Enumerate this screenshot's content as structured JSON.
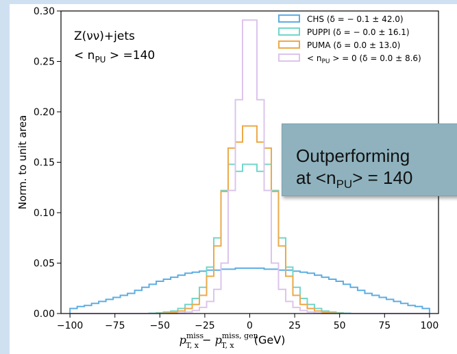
{
  "chart_data": {
    "type": "line",
    "drawstyle": "steps",
    "ylabel": "Norm. to unit area",
    "xlabel": {
      "base": "p",
      "sub": "T, x",
      "sup": "miss",
      "minus": " − ",
      "base2": "p",
      "sub2": "T, x",
      "sup2": "miss, gen",
      "unit": " (GeV)"
    },
    "xlim": [
      -105,
      105
    ],
    "ylim": [
      0,
      0.3
    ],
    "xticks": [
      -100,
      -75,
      -50,
      -25,
      0,
      25,
      50,
      75,
      100
    ],
    "yticks": [
      0.0,
      0.05,
      0.1,
      0.15,
      0.2,
      0.25,
      0.3
    ],
    "xtick_labels": [
      "−100",
      "−75",
      "−50",
      "−25",
      "0",
      "25",
      "50",
      "75",
      "100"
    ],
    "ytick_labels": [
      "0.00",
      "0.05",
      "0.10",
      "0.15",
      "0.20",
      "0.25",
      "0.30"
    ],
    "grid": false,
    "legend_placement": "top-right",
    "annotations": [
      {
        "text": "Z(νν)+jets"
      },
      {
        "text": "< n",
        "sub": "PU",
        "rest": " > =140"
      }
    ],
    "bin_edges": [
      -100,
      -96,
      -92,
      -88,
      -84,
      -80,
      -76,
      -72,
      -68,
      -64,
      -60,
      -56,
      -52,
      -48,
      -44,
      -40,
      -36,
      -32,
      -28,
      -24,
      -20,
      -16,
      -12,
      -8,
      -4,
      0,
      4,
      8,
      12,
      16,
      20,
      24,
      28,
      32,
      36,
      40,
      44,
      48,
      52,
      56,
      60,
      64,
      68,
      72,
      76,
      80,
      84,
      88,
      92,
      96,
      100
    ],
    "series": [
      {
        "name": "CHS (δ = − 0.1 ± 42.0)",
        "color": "#5dade2",
        "values": [
          0.005,
          0.007,
          0.008,
          0.01,
          0.012,
          0.014,
          0.016,
          0.018,
          0.02,
          0.023,
          0.026,
          0.029,
          0.032,
          0.034,
          0.036,
          0.038,
          0.04,
          0.041,
          0.042,
          0.043,
          0.043,
          0.044,
          0.044,
          0.045,
          0.045,
          0.045,
          0.045,
          0.044,
          0.044,
          0.043,
          0.043,
          0.042,
          0.041,
          0.04,
          0.038,
          0.036,
          0.034,
          0.032,
          0.029,
          0.026,
          0.023,
          0.02,
          0.018,
          0.016,
          0.014,
          0.012,
          0.01,
          0.008,
          0.007,
          0.005
        ]
      },
      {
        "name": "PUPPI (δ = − 0.0 ± 16.1)",
        "color": "#72d6c9",
        "values": [
          0,
          0,
          0,
          0,
          0,
          0,
          0,
          0,
          0,
          0,
          0,
          0.0003,
          0.0008,
          0.0015,
          0.0025,
          0.005,
          0.009,
          0.015,
          0.026,
          0.046,
          0.075,
          0.122,
          0.148,
          0.141,
          0.148,
          0.148,
          0.141,
          0.148,
          0.122,
          0.075,
          0.046,
          0.026,
          0.015,
          0.009,
          0.005,
          0.0025,
          0.0015,
          0.0008,
          0.0003,
          0,
          0,
          0,
          0,
          0,
          0,
          0,
          0,
          0,
          0,
          0
        ]
      },
      {
        "name": "PUMA (δ = 0.0 ± 13.0)",
        "color": "#eca948",
        "values": [
          0,
          0,
          0,
          0,
          0,
          0,
          0,
          0,
          0,
          0,
          0,
          0,
          0.0002,
          0.0005,
          0.0012,
          0.0025,
          0.005,
          0.009,
          0.018,
          0.037,
          0.067,
          0.121,
          0.164,
          0.17,
          0.186,
          0.186,
          0.17,
          0.164,
          0.121,
          0.067,
          0.037,
          0.018,
          0.009,
          0.005,
          0.0025,
          0.0012,
          0.0005,
          0.0002,
          0,
          0,
          0,
          0,
          0,
          0,
          0,
          0,
          0,
          0,
          0,
          0
        ]
      },
      {
        "name": "< n_PU > = 0 (δ = 0.0 ± 8.6)",
        "color": "#dcc4ec",
        "values": [
          0,
          0,
          0,
          0,
          0,
          0,
          0,
          0,
          0,
          0,
          0,
          0,
          0,
          0,
          0,
          0.0005,
          0.0015,
          0.003,
          0.006,
          0.012,
          0.024,
          0.05,
          0.122,
          0.212,
          0.291,
          0.291,
          0.212,
          0.122,
          0.05,
          0.024,
          0.012,
          0.006,
          0.003,
          0.0015,
          0.0005,
          0,
          0,
          0,
          0,
          0,
          0,
          0,
          0,
          0,
          0,
          0,
          0,
          0,
          0,
          0
        ]
      }
    ],
    "legend_entries": [
      {
        "label": "CHS (δ = − 0.1 ± 42.0)",
        "color": "#5dade2"
      },
      {
        "label": "PUPPI (δ = − 0.0 ± 16.1)",
        "color": "#72d6c9"
      },
      {
        "label": "PUMA (δ = 0.0 ± 13.0)",
        "color": "#eca948"
      },
      {
        "pre": "< n",
        "sub": "PU",
        "label": " > = 0 (δ = 0.0 ± 8.6)",
        "color": "#dcc4ec"
      }
    ]
  },
  "callout": {
    "line1": "Outperforming",
    "line2_pre": "at <n",
    "line2_sub": "PU",
    "line2_post": "> = 140"
  }
}
